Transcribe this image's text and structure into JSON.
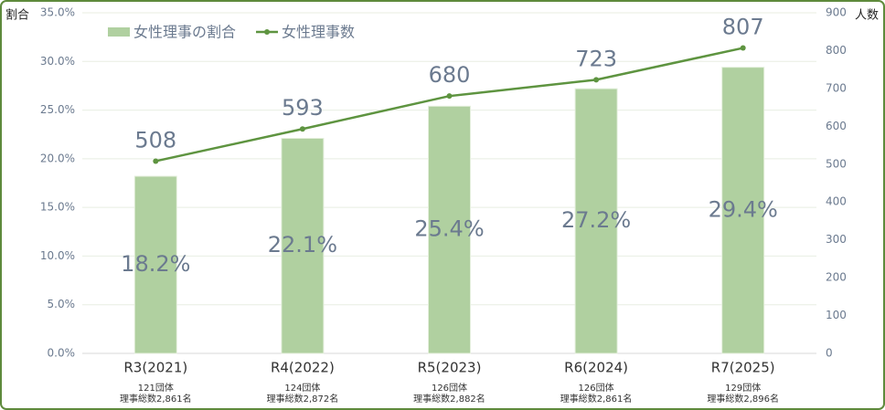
{
  "chart_data": {
    "type": "bar_line",
    "categories": [
      "R3(2021)",
      "R4(2022)",
      "R5(2023)",
      "R6(2024)",
      "R7(2025)"
    ],
    "category_notes": [
      [
        "121団体",
        "理事総数2,861名"
      ],
      [
        "124団体",
        "理事総数2,872名"
      ],
      [
        "126団体",
        "理事総数2,882名"
      ],
      [
        "126団体",
        "理事総数2,861名"
      ],
      [
        "129団体",
        "理事総数2,896名"
      ]
    ],
    "y_label": "割合",
    "y2_label": "人数",
    "series": [
      {
        "name": "女性理事の割合",
        "type": "bar",
        "color": "#b0d0a0",
        "axis": "y",
        "values": [
          18.2,
          22.1,
          25.4,
          27.2,
          29.4
        ],
        "value_labels": [
          "18.2%",
          "22.1%",
          "25.4%",
          "27.2%",
          "29.4%"
        ]
      },
      {
        "name": "女性理事数",
        "type": "line",
        "color": "#5e9440",
        "axis": "y2",
        "values": [
          508,
          593,
          680,
          723,
          807
        ]
      }
    ],
    "ylim": [
      0,
      35
    ],
    "yticks": [
      {
        "value": 0,
        "label": "0.0%"
      },
      {
        "value": 5,
        "label": "5.0%"
      },
      {
        "value": 10,
        "label": "10.0%"
      },
      {
        "value": 15,
        "label": "15.0%"
      },
      {
        "value": 20,
        "label": "20.0%"
      },
      {
        "value": 25,
        "label": "25.0%"
      },
      {
        "value": 30,
        "label": "30.0%"
      },
      {
        "value": 35,
        "label": "35.0%"
      }
    ],
    "y2lim": [
      0,
      900
    ],
    "y2ticks": [
      0,
      100,
      200,
      300,
      400,
      500,
      600,
      700,
      800,
      900
    ],
    "grid": true
  }
}
